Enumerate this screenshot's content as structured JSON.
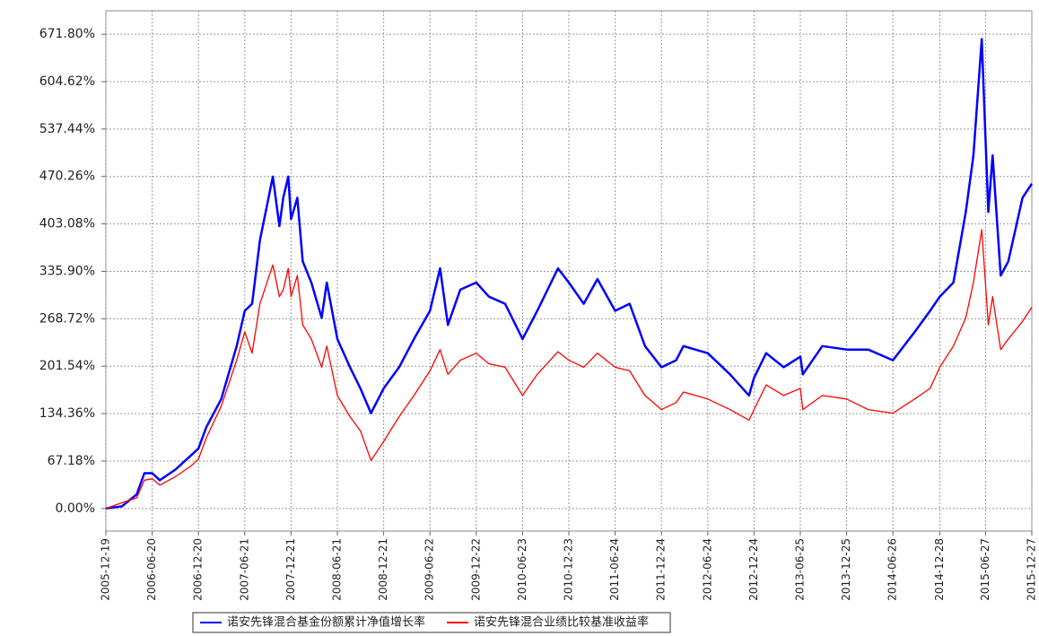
{
  "chart_data": {
    "type": "line",
    "x": [
      "2005-12-19",
      "2006-02-20",
      "2006-04-20",
      "2006-05-20",
      "2006-06-20",
      "2006-07-20",
      "2006-09-20",
      "2006-11-20",
      "2006-12-20",
      "2007-01-20",
      "2007-03-20",
      "2007-05-20",
      "2007-06-21",
      "2007-07-20",
      "2007-08-20",
      "2007-10-10",
      "2007-11-05",
      "2007-11-20",
      "2007-12-10",
      "2007-12-21",
      "2008-01-15",
      "2008-02-05",
      "2008-03-10",
      "2008-04-20",
      "2008-05-10",
      "2008-06-21",
      "2008-08-10",
      "2008-09-20",
      "2008-11-01",
      "2008-12-21",
      "2009-02-20",
      "2009-04-20",
      "2009-06-22",
      "2009-08-01",
      "2009-09-01",
      "2009-10-20",
      "2009-12-22",
      "2010-02-10",
      "2010-04-15",
      "2010-06-23",
      "2010-08-20",
      "2010-11-10",
      "2010-12-23",
      "2011-02-20",
      "2011-04-15",
      "2011-06-24",
      "2011-08-20",
      "2011-10-20",
      "2011-12-24",
      "2012-02-20",
      "2012-03-20",
      "2012-06-24",
      "2012-09-20",
      "2012-12-04",
      "2012-12-24",
      "2013-02-10",
      "2013-04-20",
      "2013-06-25",
      "2013-07-05",
      "2013-09-20",
      "2013-12-25",
      "2014-03-20",
      "2014-06-26",
      "2014-09-20",
      "2014-11-20",
      "2014-12-28",
      "2015-02-20",
      "2015-04-10",
      "2015-05-10",
      "2015-06-12",
      "2015-07-08",
      "2015-07-25",
      "2015-08-26",
      "2015-09-25",
      "2015-11-20",
      "2015-12-27"
    ],
    "series": [
      {
        "name": "诺安先锋混合基金份额累计净值增长率",
        "color": "#0000ff",
        "values": [
          0,
          3,
          20,
          50,
          50,
          40,
          55,
          75,
          85,
          115,
          155,
          230,
          280,
          290,
          380,
          470,
          400,
          440,
          470,
          410,
          440,
          350,
          320,
          270,
          320,
          240,
          200,
          170,
          135,
          170,
          200,
          240,
          280,
          340,
          260,
          310,
          320,
          300,
          290,
          240,
          280,
          340,
          320,
          290,
          325,
          280,
          290,
          230,
          200,
          210,
          230,
          220,
          190,
          160,
          185,
          220,
          200,
          215,
          190,
          230,
          225,
          225,
          210,
          250,
          280,
          300,
          320,
          420,
          500,
          665,
          420,
          500,
          330,
          350,
          440,
          460
        ]
      },
      {
        "name": "诺安先锋混合业绩比较基准收益率",
        "color": "#ff0000",
        "values": [
          0,
          8,
          15,
          40,
          42,
          33,
          45,
          60,
          70,
          100,
          145,
          210,
          250,
          220,
          290,
          345,
          300,
          310,
          340,
          300,
          330,
          260,
          240,
          200,
          230,
          160,
          130,
          110,
          68,
          95,
          130,
          160,
          195,
          225,
          190,
          210,
          220,
          205,
          200,
          160,
          190,
          222,
          210,
          200,
          220,
          200,
          195,
          160,
          140,
          150,
          165,
          155,
          140,
          125,
          140,
          175,
          160,
          170,
          140,
          160,
          155,
          140,
          135,
          155,
          170,
          200,
          230,
          270,
          320,
          395,
          260,
          300,
          225,
          240,
          265,
          285
        ]
      }
    ],
    "xlim": [
      "2005-12-19",
      "2015-12-27"
    ],
    "xticks": [
      "2005-12-19",
      "2006-06-20",
      "2006-12-20",
      "2007-06-21",
      "2007-12-21",
      "2008-06-21",
      "2008-12-21",
      "2009-06-22",
      "2009-12-22",
      "2010-06-23",
      "2010-12-23",
      "2011-06-24",
      "2011-12-24",
      "2012-06-24",
      "2012-12-24",
      "2013-06-25",
      "2013-12-25",
      "2014-06-26",
      "2014-12-28",
      "2015-06-27",
      "2015-12-27"
    ],
    "ylim": [
      -32,
      705
    ],
    "yticks": [
      {
        "value": 0,
        "label": "0.00%"
      },
      {
        "value": 67.18,
        "label": "67.18%"
      },
      {
        "value": 134.36,
        "label": "134.36%"
      },
      {
        "value": 201.54,
        "label": "201.54%"
      },
      {
        "value": 268.72,
        "label": "268.72%"
      },
      {
        "value": 335.9,
        "label": "335.90%"
      },
      {
        "value": 403.08,
        "label": "403.08%"
      },
      {
        "value": 470.26,
        "label": "470.26%"
      },
      {
        "value": 537.44,
        "label": "537.44%"
      },
      {
        "value": 604.62,
        "label": "604.62%"
      },
      {
        "value": 671.8,
        "label": "671.80%"
      }
    ],
    "grid": true,
    "legend": "bottom"
  }
}
